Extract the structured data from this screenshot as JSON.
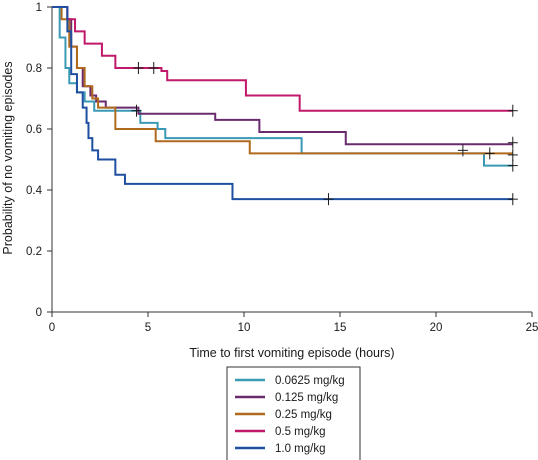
{
  "chart_data": {
    "type": "line",
    "subtype": "kaplan-meier-step",
    "title": "",
    "xlabel": "Time to first vomiting episode (hours)",
    "ylabel": "Probability of no vomiting episodes",
    "xlim": [
      0,
      25
    ],
    "ylim": [
      0,
      1
    ],
    "xticks": [
      0,
      5,
      10,
      15,
      20,
      25
    ],
    "yticks": [
      0,
      0.2,
      0.4,
      0.6,
      0.8,
      1
    ],
    "ytick_labels": [
      "0",
      "0.2",
      "0.4",
      "0.6",
      "0.8",
      "1"
    ],
    "grid": false,
    "legend": "bottom-center, boxed",
    "series": [
      {
        "name": "0.0625 mg/kg",
        "color": "#3a9ab5",
        "steps": [
          [
            0,
            1
          ],
          [
            0.4,
            0.9
          ],
          [
            0.7,
            0.8
          ],
          [
            0.9,
            0.75
          ],
          [
            1.3,
            0.72
          ],
          [
            1.7,
            0.69
          ],
          [
            2.2,
            0.66
          ],
          [
            3.6,
            0.66
          ],
          [
            4.6,
            0.62
          ],
          [
            5.5,
            0.6
          ],
          [
            5.9,
            0.57
          ],
          [
            13,
            0.52
          ],
          [
            22.5,
            0.48
          ],
          [
            24,
            0.48
          ]
        ],
        "censored": [
          [
            24,
            0.48
          ]
        ]
      },
      {
        "name": "0.125 mg/kg",
        "color": "#6a2a6e",
        "steps": [
          [
            0,
            1
          ],
          [
            0.8,
            0.96
          ],
          [
            1.0,
            0.87
          ],
          [
            1.3,
            0.8
          ],
          [
            1.6,
            0.74
          ],
          [
            2.0,
            0.71
          ],
          [
            2.3,
            0.69
          ],
          [
            2.8,
            0.67
          ],
          [
            4.5,
            0.65
          ],
          [
            8.5,
            0.63
          ],
          [
            10.8,
            0.59
          ],
          [
            15.3,
            0.55
          ],
          [
            24,
            0.55
          ]
        ],
        "censored": [
          [
            4.4,
            0.66
          ],
          [
            24,
            0.555
          ]
        ]
      },
      {
        "name": "0.25 mg/kg",
        "color": "#b06a1e",
        "steps": [
          [
            0,
            1
          ],
          [
            0.5,
            0.96
          ],
          [
            0.9,
            0.87
          ],
          [
            1.3,
            0.8
          ],
          [
            1.7,
            0.74
          ],
          [
            2.1,
            0.7
          ],
          [
            2.4,
            0.67
          ],
          [
            3.3,
            0.6
          ],
          [
            5.4,
            0.56
          ],
          [
            10.3,
            0.52
          ],
          [
            24,
            0.52
          ]
        ],
        "censored": [
          [
            21.4,
            0.53
          ],
          [
            22.8,
            0.52
          ],
          [
            24,
            0.515
          ]
        ]
      },
      {
        "name": "0.5 mg/kg",
        "color": "#c0186a",
        "steps": [
          [
            0,
            1
          ],
          [
            0.8,
            0.96
          ],
          [
            1.2,
            0.92
          ],
          [
            1.7,
            0.88
          ],
          [
            2.6,
            0.84
          ],
          [
            3.3,
            0.8
          ],
          [
            5.7,
            0.79
          ],
          [
            6.0,
            0.76
          ],
          [
            10.1,
            0.71
          ],
          [
            12.9,
            0.66
          ],
          [
            24,
            0.66
          ]
        ],
        "censored": [
          [
            4.5,
            0.8
          ],
          [
            5.3,
            0.8
          ],
          [
            24,
            0.66
          ]
        ]
      },
      {
        "name": "1.0 mg/kg",
        "color": "#1f4fa0",
        "steps": [
          [
            0,
            1
          ],
          [
            0.8,
            0.92
          ],
          [
            1.0,
            0.78
          ],
          [
            1.3,
            0.72
          ],
          [
            1.6,
            0.67
          ],
          [
            1.8,
            0.62
          ],
          [
            1.9,
            0.57
          ],
          [
            2.1,
            0.53
          ],
          [
            2.4,
            0.5
          ],
          [
            3.3,
            0.45
          ],
          [
            3.8,
            0.42
          ],
          [
            9.4,
            0.37
          ],
          [
            24,
            0.37
          ]
        ],
        "censored": [
          [
            14.4,
            0.37
          ],
          [
            24,
            0.37
          ]
        ]
      }
    ]
  }
}
